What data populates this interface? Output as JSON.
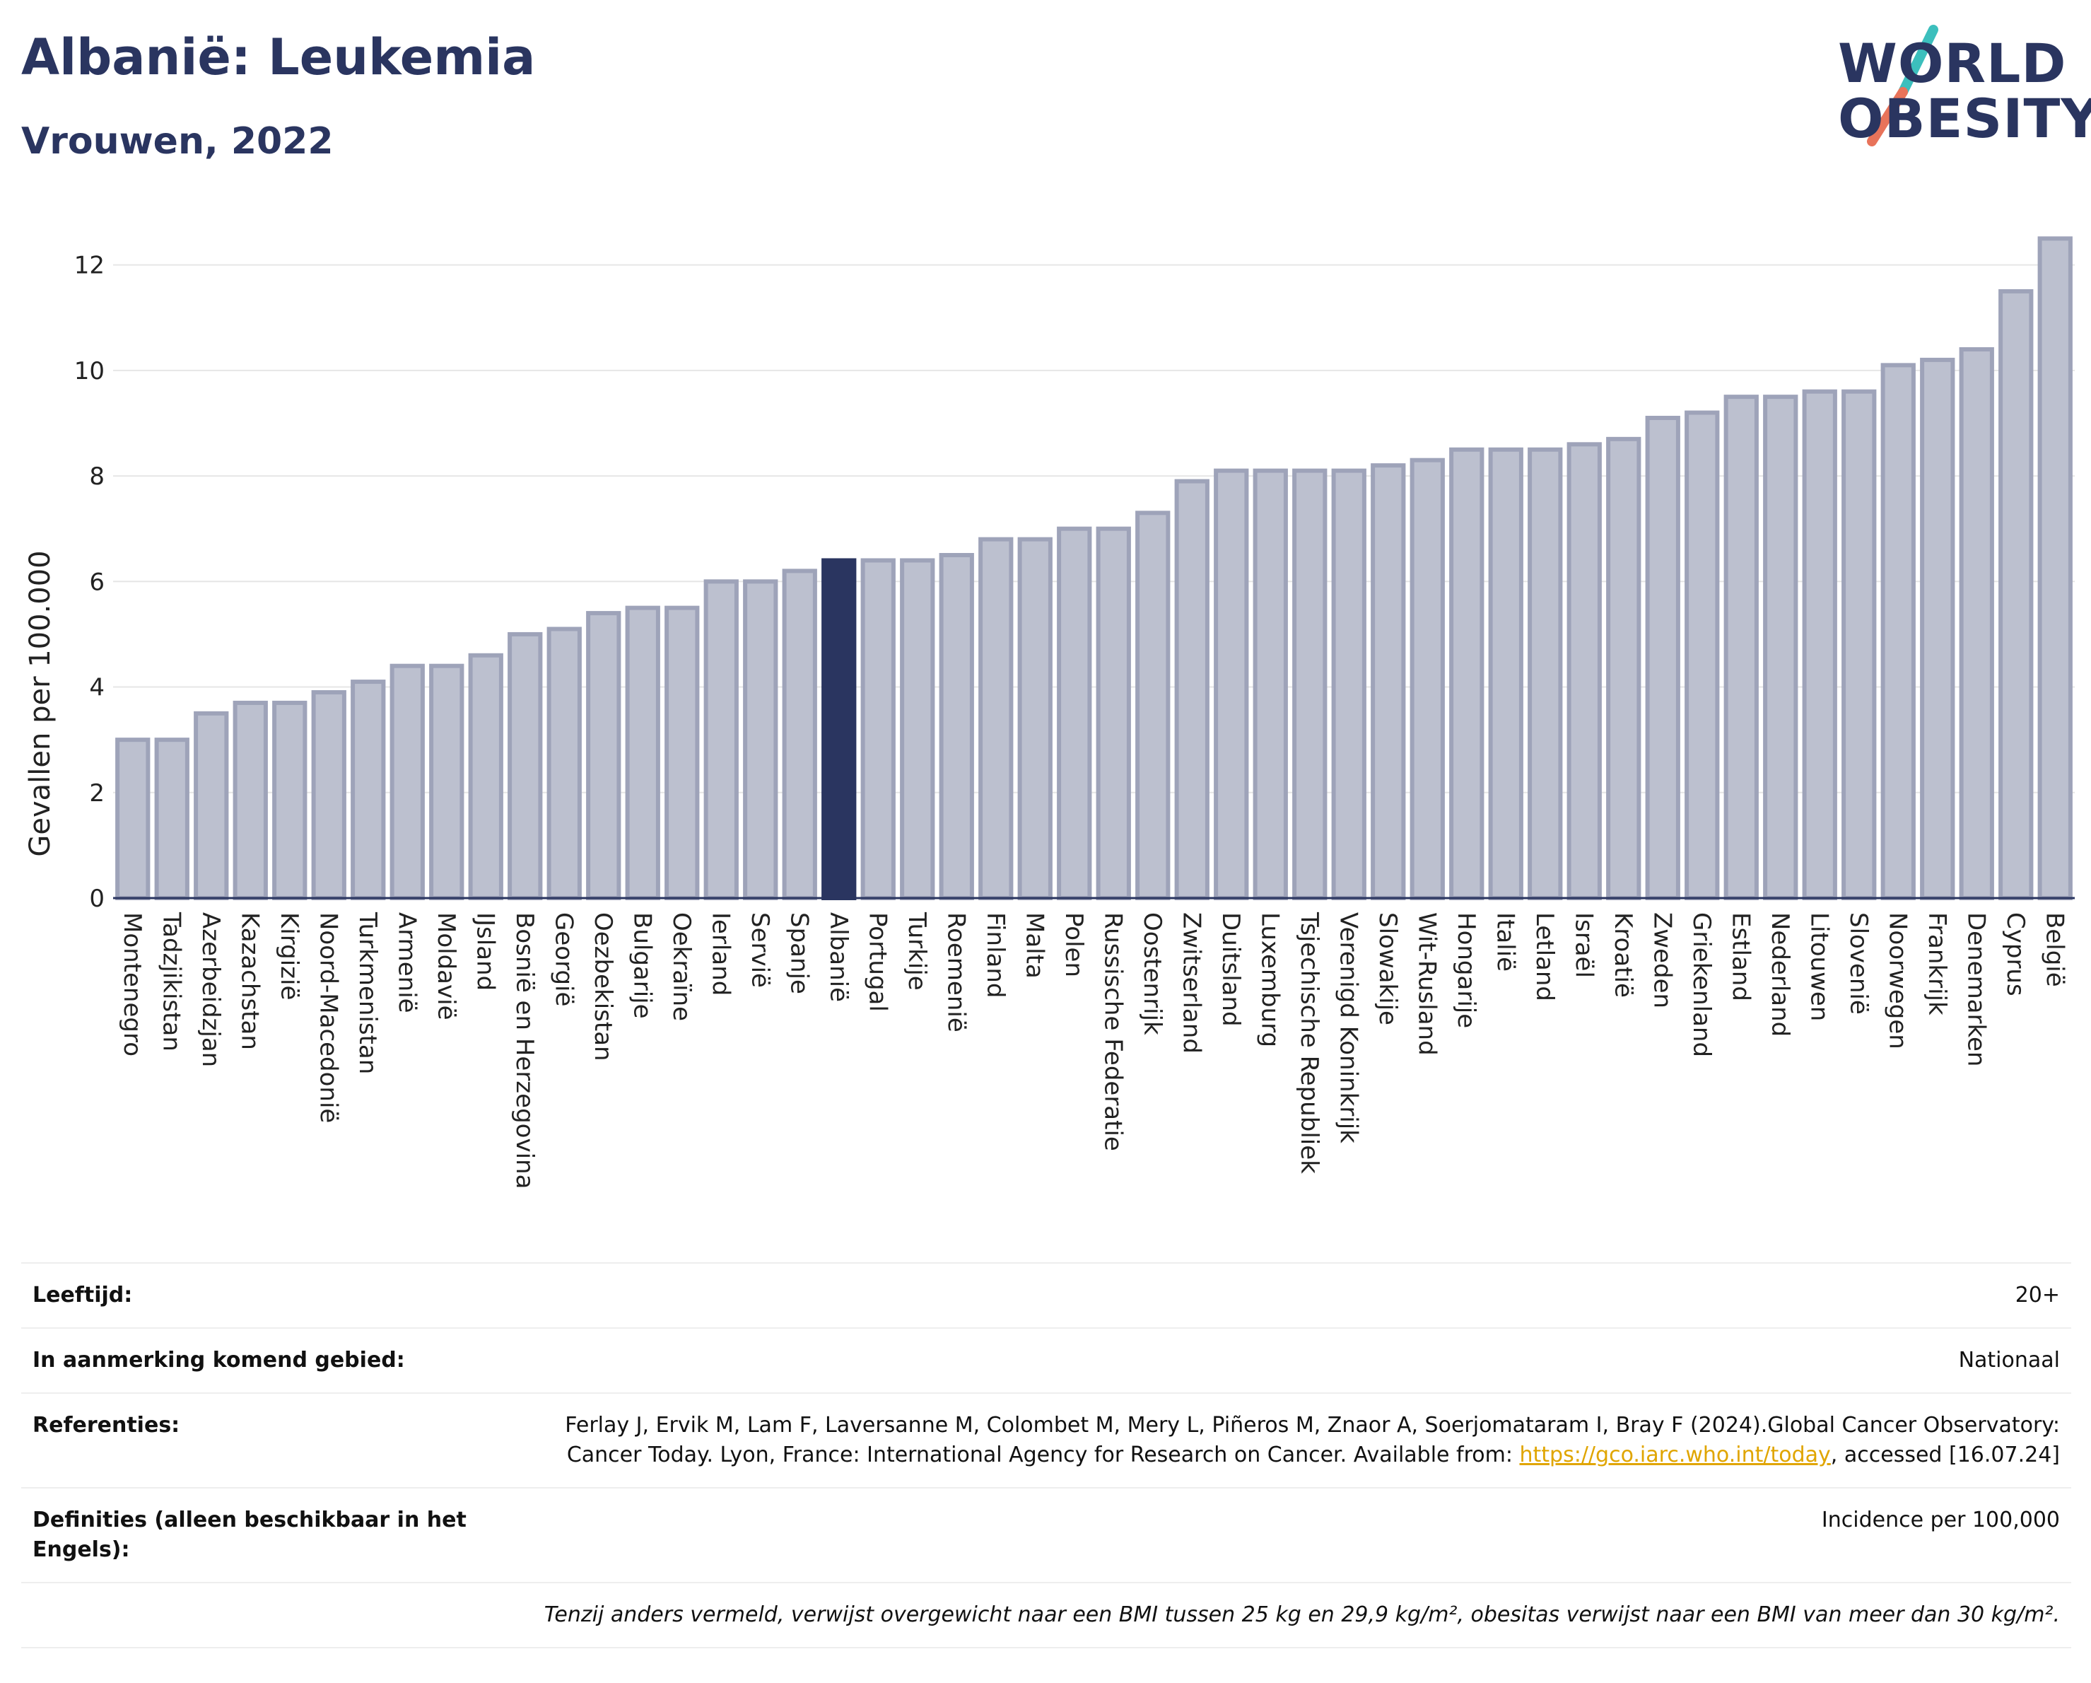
{
  "header": {
    "title": "Albanië: Leukemia",
    "subtitle": "Vrouwen, 2022"
  },
  "logo": {
    "line1": "WORLD",
    "line2": "OBESITY"
  },
  "colors": {
    "highlight": "#2a3560",
    "bar": "#bcc0cf",
    "bar_edge": "#9ea3b9",
    "accent_teal": "#3cbfbd",
    "accent_coral": "#e8735a"
  },
  "chart_data": {
    "type": "bar",
    "ylabel": "Gevallen per 100.000",
    "ylim": [
      0,
      13
    ],
    "yticks": [
      0,
      2,
      4,
      6,
      8,
      10,
      12
    ],
    "grid": true,
    "highlight": "Albanië",
    "categories": [
      "Montenegro",
      "Tadzjikistan",
      "Azerbeidzjan",
      "Kazachstan",
      "Kirgizië",
      "Noord-Macedonië",
      "Turkmenistan",
      "Armenië",
      "Moldavië",
      "IJsland",
      "Bosnië en Herzegovina",
      "Georgië",
      "Oezbekistan",
      "Bulgarije",
      "Oekraïne",
      "Ierland",
      "Servië",
      "Spanje",
      "Albanië",
      "Portugal",
      "Turkije",
      "Roemenië",
      "Finland",
      "Malta",
      "Polen",
      "Russische Federatie",
      "Oostenrijk",
      "Zwitserland",
      "Duitsland",
      "Luxemburg",
      "Tsjechische Republiek",
      "Verenigd Koninkrijk",
      "Slowakije",
      "Wit-Rusland",
      "Hongarije",
      "Italië",
      "Letland",
      "Israël",
      "Kroatië",
      "Zweden",
      "Griekenland",
      "Estland",
      "Nederland",
      "Litouwen",
      "Slovenië",
      "Noorwegen",
      "Frankrijk",
      "Denemarken",
      "Cyprus",
      "België"
    ],
    "values": [
      3.0,
      3.0,
      3.5,
      3.7,
      3.7,
      3.9,
      4.1,
      4.4,
      4.4,
      4.6,
      5.0,
      5.1,
      5.4,
      5.5,
      5.5,
      6.0,
      6.0,
      6.2,
      6.4,
      6.4,
      6.4,
      6.5,
      6.8,
      6.8,
      7.0,
      7.0,
      7.3,
      7.9,
      8.1,
      8.1,
      8.1,
      8.1,
      8.2,
      8.3,
      8.5,
      8.5,
      8.5,
      8.6,
      8.7,
      9.1,
      9.2,
      9.5,
      9.5,
      9.6,
      9.6,
      10.1,
      10.2,
      10.4,
      11.5,
      12.5
    ]
  },
  "info": {
    "age_label": "Leeftijd:",
    "age_value": "20+",
    "area_label": "In aanmerking komend gebied:",
    "area_value": "Nationaal",
    "ref_label": "Referenties:",
    "ref_text": "Ferlay J, Ervik M, Lam F, Laversanne M, Colombet M, Mery L, Piñeros M, Znaor A, Soerjomataram I, Bray F (2024).Global Cancer Observatory: Cancer Today. Lyon, France: International Agency for Research on Cancer. Available from: ",
    "ref_link": "https://gco.iarc.who.int/today",
    "ref_suffix": ", accessed [16.07.24]",
    "def_label": "Definities (alleen beschikbaar in het Engels):",
    "def_value": "Incidence per 100,000",
    "note": "Tenzij anders vermeld, verwijst overgewicht naar een BMI tussen 25 kg en 29,9 kg/m², obesitas verwijst naar een BMI van meer dan 30 kg/m²."
  }
}
